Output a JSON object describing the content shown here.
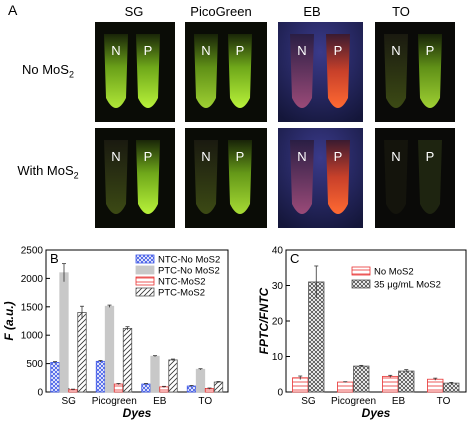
{
  "panel_a": {
    "label": "A",
    "dyes": [
      "SG",
      "PicoGreen",
      "EB",
      "TO"
    ],
    "rows": [
      {
        "label_main": "No MoS",
        "label_sub": "2"
      },
      {
        "label_main": "With MoS",
        "label_sub": "2"
      }
    ],
    "tube_left": "N",
    "tube_right": "P",
    "colors": {
      "background": "#0b0b0b",
      "sg_glow": "#9be21f",
      "eb_glow": "#ff5a2a",
      "eb_bg": "#22255e"
    }
  },
  "chart_data": [
    {
      "panel": "B",
      "type": "bar",
      "ylabel": "F (a.u.)",
      "xlabel": "Dyes",
      "categories": [
        "SG",
        "Picogreen",
        "EB",
        "TO"
      ],
      "ylim": [
        0,
        2500
      ],
      "yticks": [
        "0",
        "500",
        "1000",
        "1500",
        "2000",
        "2500"
      ],
      "series": [
        {
          "name": "NTC-No MoS2",
          "values": [
            520,
            540,
            140,
            105
          ],
          "errors": [
            15,
            15,
            10,
            10
          ],
          "color": "#3b55e6",
          "pattern": "blue-check"
        },
        {
          "name": "PTC-No MoS2",
          "values": [
            2100,
            1510,
            630,
            400
          ],
          "errors": [
            160,
            20,
            10,
            10
          ],
          "color": "#c8c8c8",
          "pattern": "grey-fill"
        },
        {
          "name": "NTC-MoS2",
          "values": [
            40,
            140,
            90,
            60
          ],
          "errors": [
            10,
            10,
            10,
            10
          ],
          "color": "#e83030",
          "pattern": "red-hatch"
        },
        {
          "name": "PTC-MoS2",
          "values": [
            1400,
            1120,
            565,
            175
          ],
          "errors": [
            110,
            30,
            15,
            10
          ],
          "color": "#555555",
          "pattern": "black-hatch"
        }
      ],
      "legend": "top-right"
    },
    {
      "panel": "C",
      "type": "bar",
      "ylabel": "FPTC/FNTC",
      "xlabel": "Dyes",
      "categories": [
        "SG",
        "Picogreen",
        "EB",
        "TO"
      ],
      "ylim": [
        0,
        40
      ],
      "yticks": [
        "0",
        "10",
        "20",
        "30",
        "40"
      ],
      "series": [
        {
          "name": "No MoS2",
          "values": [
            4.0,
            2.8,
            4.4,
            3.6
          ],
          "errors": [
            0.5,
            0.1,
            0.3,
            0.3
          ],
          "color": "#e83030",
          "pattern": "red-hatch"
        },
        {
          "name": "35 μg/mL MoS2",
          "values": [
            31,
            7.3,
            5.9,
            2.5
          ],
          "errors": [
            4.5,
            0.2,
            0.4,
            0.2
          ],
          "color": "#555555",
          "pattern": "black-cross"
        }
      ],
      "legend": "top-right"
    }
  ]
}
